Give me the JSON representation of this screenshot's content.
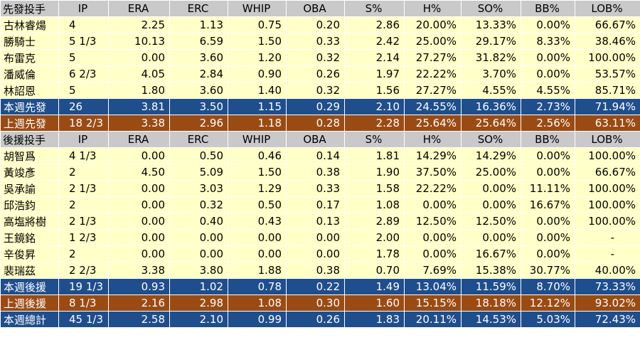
{
  "headers": {
    "starters_label": "先發投手",
    "relievers_label": "後援投手",
    "cols": [
      "IP",
      "ERA",
      "ERC",
      "WHIP",
      "OBA",
      "S%",
      "H%",
      "SO%",
      "BB%",
      "LOB%"
    ]
  },
  "starters": [
    {
      "name": "古林睿煬",
      "values": [
        "4",
        "2.25",
        "1.13",
        "0.75",
        "0.20",
        "2.86",
        "20.00%",
        "13.33%",
        "0.00%",
        "66.67%"
      ]
    },
    {
      "name": "勝騎士",
      "values": [
        "5 1/3",
        "10.13",
        "6.59",
        "1.50",
        "0.33",
        "2.42",
        "25.00%",
        "29.17%",
        "8.33%",
        "38.46%"
      ]
    },
    {
      "name": "布雷克",
      "values": [
        "5",
        "0.00",
        "3.60",
        "1.20",
        "0.32",
        "2.14",
        "27.27%",
        "31.82%",
        "0.00%",
        "100.00%"
      ]
    },
    {
      "name": "潘威倫",
      "values": [
        "6 2/3",
        "4.05",
        "2.84",
        "0.90",
        "0.26",
        "1.97",
        "22.22%",
        "3.70%",
        "0.00%",
        "53.57%"
      ]
    },
    {
      "name": "林詔恩",
      "values": [
        "5",
        "1.80",
        "3.60",
        "1.40",
        "0.32",
        "1.56",
        "27.27%",
        "4.55%",
        "4.55%",
        "85.71%"
      ]
    }
  ],
  "starters_this_week": {
    "name": "本週先發",
    "values": [
      "26",
      "3.81",
      "3.50",
      "1.15",
      "0.29",
      "2.10",
      "24.55%",
      "16.36%",
      "2.73%",
      "71.94%"
    ]
  },
  "starters_last_week": {
    "name": "上週先發",
    "values": [
      "18 2/3",
      "3.38",
      "2.96",
      "1.18",
      "0.28",
      "2.28",
      "25.64%",
      "25.64%",
      "2.56%",
      "63.11%"
    ]
  },
  "relievers": [
    {
      "name": "胡智爲",
      "values": [
        "4 1/3",
        "0.00",
        "0.50",
        "0.46",
        "0.14",
        "1.81",
        "14.29%",
        "14.29%",
        "0.00%",
        "100.00%"
      ]
    },
    {
      "name": "黃竣彥",
      "values": [
        "2",
        "4.50",
        "5.09",
        "1.50",
        "0.38",
        "1.90",
        "37.50%",
        "25.00%",
        "0.00%",
        "66.67%"
      ]
    },
    {
      "name": "吳承諭",
      "values": [
        "2 1/3",
        "0.00",
        "3.03",
        "1.29",
        "0.33",
        "1.58",
        "22.22%",
        "0.00%",
        "11.11%",
        "100.00%"
      ]
    },
    {
      "name": "邱浩鈞",
      "values": [
        "2",
        "0.00",
        "0.32",
        "0.50",
        "0.17",
        "1.08",
        "0.00%",
        "0.00%",
        "16.67%",
        "100.00%"
      ]
    },
    {
      "name": "高塩將樹",
      "values": [
        "2 1/3",
        "0.00",
        "0.40",
        "0.43",
        "0.13",
        "2.89",
        "12.50%",
        "12.50%",
        "0.00%",
        "100.00%"
      ]
    },
    {
      "name": "王鏡銘",
      "values": [
        "1 2/3",
        "0.00",
        "0.00",
        "0.00",
        "0.00",
        "2.00",
        "0.00%",
        "0.00%",
        "0.00%",
        "-"
      ]
    },
    {
      "name": "辛俊昇",
      "values": [
        "2",
        "0.00",
        "0.00",
        "0.00",
        "0.00",
        "1.78",
        "0.00%",
        "16.67%",
        "0.00%",
        "-"
      ]
    },
    {
      "name": "裴瑞茲",
      "values": [
        "2 2/3",
        "3.38",
        "3.80",
        "1.88",
        "0.38",
        "0.70",
        "7.69%",
        "15.38%",
        "30.77%",
        "40.00%"
      ]
    }
  ],
  "relievers_this_week": {
    "name": "本週後援",
    "values": [
      "19 1/3",
      "0.93",
      "1.02",
      "0.78",
      "0.22",
      "1.49",
      "13.04%",
      "11.59%",
      "8.70%",
      "73.33%"
    ]
  },
  "relievers_last_week": {
    "name": "上週後援",
    "values": [
      "8 1/3",
      "2.16",
      "2.98",
      "1.08",
      "0.30",
      "1.60",
      "15.15%",
      "18.18%",
      "12.12%",
      "93.02%"
    ]
  },
  "week_total": {
    "name": "本週總計",
    "values": [
      "45 1/3",
      "2.58",
      "2.10",
      "0.99",
      "0.26",
      "1.83",
      "20.11%",
      "14.53%",
      "5.03%",
      "72.43%"
    ]
  },
  "colors": {
    "header": "#c9c9c9",
    "row": "#ffffc8",
    "blue": "#1f4e8c",
    "brown": "#9a4b14"
  }
}
